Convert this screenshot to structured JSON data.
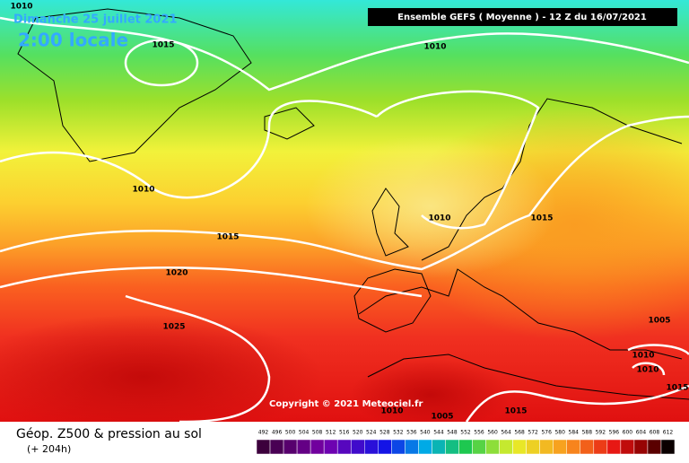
{
  "header": {
    "date": "Dimanche 25 juillet 2021",
    "time": "2:00 locale",
    "model": "Ensemble GEFS  ( Moyenne )  -  12 Z du 16/07/2021"
  },
  "copyright": "Copyright © 2021 Meteociel.fr",
  "footer": {
    "title": "Géop. Z500 & pression au sol",
    "lead": "(+ 204h)"
  },
  "isobar_labels": [
    "1010",
    "1015",
    "1010",
    "1010",
    "1010",
    "1015",
    "1015",
    "1020",
    "1025",
    "1015",
    "1010",
    "1005",
    "1005",
    "1010",
    "1010",
    "1015"
  ],
  "legend": {
    "levels": [
      492,
      496,
      500,
      504,
      508,
      512,
      516,
      520,
      524,
      528,
      532,
      536,
      540,
      544,
      548,
      552,
      556,
      560,
      564,
      568,
      572,
      576,
      580,
      584,
      588,
      592,
      596,
      600,
      604,
      608,
      612
    ]
  }
}
